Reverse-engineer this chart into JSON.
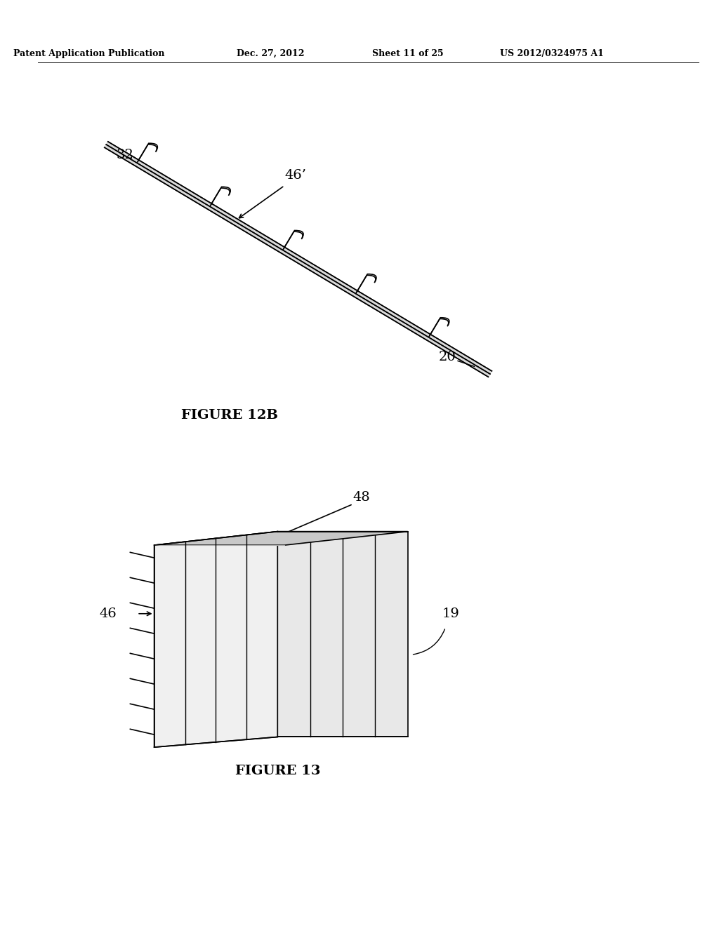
{
  "background_color": "#ffffff",
  "header_text": "Patent Application Publication",
  "header_date": "Dec. 27, 2012",
  "header_sheet": "Sheet 11 of 25",
  "header_patent": "US 2012/0324975 A1",
  "fig12b_caption": "FIGURE 12B",
  "fig13_caption": "FIGURE 13",
  "label_32": "32",
  "label_46prime": "46’",
  "label_20": "20",
  "label_46": "46",
  "label_48": "48",
  "label_19": "19",
  "line_color": "#000000",
  "shading_light": "#d0d0d0",
  "shading_mid": "#b0b0b0",
  "shading_dark": "#808080"
}
